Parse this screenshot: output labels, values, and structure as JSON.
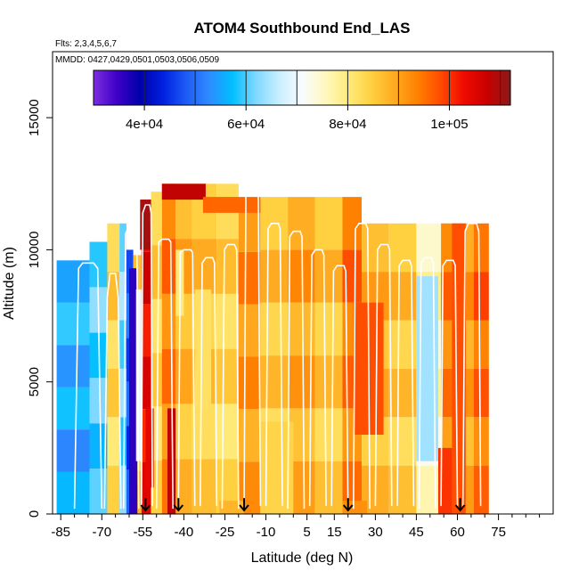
{
  "chart_data": {
    "type": "heatmap",
    "title": "ATOM4 Southbound End_LAS",
    "flights_label": "Flts: 2,3,4,5,6,7",
    "dates_label": "MMDD: 0427,0429,0501,0503,0506,0509",
    "xlabel": "Latitude (deg N)",
    "ylabel": "Altitude (m)",
    "xlim": [
      -88,
      95
    ],
    "ylim": [
      0,
      17500
    ],
    "xticks": [
      -85,
      -70,
      -55,
      -40,
      -25,
      -10,
      5,
      15,
      30,
      45,
      60,
      75
    ],
    "xtick_labels": [
      "-85",
      "-70",
      "-55",
      "-40",
      "-25",
      "-10",
      "5",
      "15",
      "30",
      "45",
      "60",
      "75"
    ],
    "xminor": [
      -90,
      -80,
      -75,
      -65,
      -60,
      -50,
      -45,
      -35,
      -30,
      -20,
      -15,
      -5,
      0,
      10,
      20,
      25,
      35,
      40,
      50,
      55,
      65,
      70,
      80,
      85,
      90
    ],
    "yticks": [
      0,
      5000,
      10000,
      15000
    ],
    "ytick_labels": [
      "0",
      "5000",
      "10000",
      "15000"
    ],
    "colorbar": {
      "min": 30000,
      "max": 112000,
      "ticks": [
        40000,
        60000,
        80000,
        100000
      ],
      "tick_labels": [
        "4e+04",
        "6e+04",
        "8e+04",
        "1e+05"
      ],
      "colors": [
        "#7B2FE0",
        "#3F00C8",
        "#0000AA",
        "#0020E0",
        "#1E5CF5",
        "#2E8CFF",
        "#00BFFF",
        "#7ED8FF",
        "#C8EEFF",
        "#F8FCFF",
        "#FFF8C0",
        "#FFEB7A",
        "#FFD040",
        "#FFAA20",
        "#FF8000",
        "#FF4A00",
        "#F00A00",
        "#C80000",
        "#8B1A1A"
      ]
    },
    "columns": [
      {
        "x0": -86.5,
        "x1": -74.5,
        "top": 9600,
        "v": 56000
      },
      {
        "x0": -74.5,
        "x1": -68.0,
        "top": 10300,
        "v": 60000
      },
      {
        "x0": -68.0,
        "x1": -63.5,
        "top": 11000,
        "v": 84000
      },
      {
        "x0": -63.5,
        "x1": -61.0,
        "top": 11000,
        "v": 62000
      },
      {
        "x0": -61.0,
        "x1": -58.5,
        "top": 10000,
        "v": 48000
      },
      {
        "x0": -58.5,
        "x1": -55.5,
        "top": 9800,
        "v": 88000
      },
      {
        "x0": -55.5,
        "x1": -52.0,
        "top": 11900,
        "v": 104000
      },
      {
        "x0": -52.0,
        "x1": -48.0,
        "top": 12200,
        "v": 84000
      },
      {
        "x0": -48.0,
        "x1": -43.0,
        "top": 12500,
        "v": 94000
      },
      {
        "x0": -43.0,
        "x1": -37.0,
        "top": 12500,
        "v": 88000
      },
      {
        "x0": -37.0,
        "x1": -28.0,
        "top": 12500,
        "v": 86000
      },
      {
        "x0": -28.0,
        "x1": -20.0,
        "top": 12500,
        "v": 84000
      },
      {
        "x0": -20.0,
        "x1": -12.0,
        "top": 11900,
        "v": 92000
      },
      {
        "x0": -12.0,
        "x1": -2.0,
        "top": 12000,
        "v": 86000
      },
      {
        "x0": -2.0,
        "x1": 8.0,
        "top": 12000,
        "v": 90000
      },
      {
        "x0": 8.0,
        "x1": 18.0,
        "top": 12000,
        "v": 86000
      },
      {
        "x0": 18.0,
        "x1": 25.0,
        "top": 12000,
        "v": 95000
      },
      {
        "x0": 25.0,
        "x1": 35.0,
        "top": 11000,
        "v": 88000
      },
      {
        "x0": 35.0,
        "x1": 45.0,
        "top": 11000,
        "v": 86000
      },
      {
        "x0": 45.0,
        "x1": 54.0,
        "top": 11000,
        "v": 76000
      },
      {
        "x0": 54.0,
        "x1": 62.0,
        "top": 11000,
        "v": 94000
      },
      {
        "x0": 62.0,
        "x1": 66.0,
        "top": 11000,
        "v": 90000
      },
      {
        "x0": 66.0,
        "x1": 71.5,
        "top": 11000,
        "v": 96000
      }
    ],
    "patches": [
      {
        "x0": -56.0,
        "x1": -52.0,
        "y0": 10000,
        "y1": 11900,
        "v": 110000
      },
      {
        "x0": -48.0,
        "x1": -32.0,
        "y0": 11900,
        "y1": 12500,
        "v": 108000
      },
      {
        "x0": -33.0,
        "x1": -12.0,
        "y0": 11400,
        "y1": 12000,
        "v": 96000
      },
      {
        "x0": -60.0,
        "x1": -57.0,
        "y0": 0,
        "y1": 9300,
        "v": 36000
      },
      {
        "x0": -57.5,
        "x1": -55.5,
        "y0": 2000,
        "y1": 8500,
        "v": 70000
      },
      {
        "x0": -54.0,
        "x1": -51.0,
        "y0": 1000,
        "y1": 4000,
        "v": 104000
      },
      {
        "x0": -43.0,
        "x1": -40.0,
        "y0": 7500,
        "y1": 10000,
        "v": 80000
      },
      {
        "x0": -46.0,
        "x1": -43.0,
        "y0": 0,
        "y1": 4000,
        "v": 108000
      },
      {
        "x0": -12.0,
        "x1": 0.0,
        "y0": 0,
        "y1": 3500,
        "v": 84000
      },
      {
        "x0": 18.0,
        "x1": 27.0,
        "y0": 0,
        "y1": 500,
        "v": 92000
      },
      {
        "x0": 22.0,
        "x1": 33.0,
        "y0": 3000,
        "y1": 8000,
        "v": 98000
      },
      {
        "x0": 45.0,
        "x1": 53.0,
        "y0": 2000,
        "y1": 9000,
        "v": 64000
      },
      {
        "x0": 53.0,
        "x1": 58.0,
        "y0": 0,
        "y1": 2500,
        "v": 100000
      },
      {
        "x0": 58.0,
        "x1": 63.0,
        "y0": 0,
        "y1": 11000,
        "v": 98000
      },
      {
        "x0": -27.0,
        "x1": -18.0,
        "y0": 0,
        "y1": 500,
        "v": 88000
      },
      {
        "x0": -36.0,
        "x1": -30.0,
        "y0": 4000,
        "y1": 8500,
        "v": 82000
      }
    ],
    "profiles": [
      {
        "x": [
          -80,
          -78.5,
          -77,
          -73,
          -71.5,
          -70
        ],
        "y": [
          200,
          9300,
          9500,
          9500,
          9300,
          200
        ]
      },
      {
        "x": [
          -69,
          -68,
          -67,
          -65,
          -64,
          -63
        ],
        "y": [
          200,
          8200,
          9100,
          9100,
          8200,
          200
        ]
      },
      {
        "x": [
          -62,
          -61.3,
          -60.5,
          -58,
          -57.2,
          -56.5
        ],
        "y": [
          200,
          10600,
          10800,
          10800,
          10600,
          200
        ]
      },
      {
        "x": [
          -55.5,
          -55,
          -54,
          -52.5,
          -52,
          -51.5
        ],
        "y": [
          300,
          11400,
          11700,
          11700,
          11400,
          300
        ]
      },
      {
        "x": [
          -50,
          -49.2,
          -48,
          -45.5,
          -44.8,
          -44
        ],
        "y": [
          200,
          10300,
          10400,
          10400,
          10300,
          200
        ]
      },
      {
        "x": [
          -42,
          -41.3,
          -40,
          -37.5,
          -36.8,
          -36
        ],
        "y": [
          300,
          9900,
          10000,
          10000,
          9900,
          300
        ]
      },
      {
        "x": [
          -34,
          -33.3,
          -32,
          -29.5,
          -28.8,
          -28
        ],
        "y": [
          300,
          9500,
          9700,
          9700,
          9500,
          300
        ]
      },
      {
        "x": [
          -26,
          -25.2,
          -24,
          -21.5,
          -20.7,
          -20
        ],
        "y": [
          200,
          10000,
          10200,
          10200,
          10000,
          200
        ]
      },
      {
        "x": [
          -18,
          -17.3,
          -16,
          -13.5,
          -12.8,
          -12
        ],
        "y": [
          300,
          12300,
          12400,
          12400,
          12300,
          300
        ]
      },
      {
        "x": [
          -10,
          -9.2,
          -8,
          -5.5,
          -4.8,
          -4
        ],
        "y": [
          300,
          10800,
          11000,
          11000,
          10800,
          300
        ]
      },
      {
        "x": [
          -2,
          -1.3,
          0,
          2.5,
          3.2,
          4
        ],
        "y": [
          200,
          10500,
          10700,
          10700,
          10500,
          200
        ]
      },
      {
        "x": [
          6,
          6.8,
          8,
          10.5,
          11.2,
          12
        ],
        "y": [
          300,
          9800,
          10000,
          10000,
          9800,
          300
        ]
      },
      {
        "x": [
          14,
          14.7,
          16,
          18.5,
          19.2,
          20
        ],
        "y": [
          300,
          9200,
          9400,
          9400,
          9200,
          300
        ]
      },
      {
        "x": [
          22,
          22.7,
          24,
          26.5,
          27.2,
          28
        ],
        "y": [
          200,
          10800,
          11000,
          11000,
          10800,
          200
        ]
      },
      {
        "x": [
          30,
          30.8,
          32,
          34.5,
          35.2,
          36
        ],
        "y": [
          300,
          10000,
          10200,
          10200,
          10000,
          300
        ]
      },
      {
        "x": [
          38,
          38.7,
          40,
          42.5,
          43.2,
          44
        ],
        "y": [
          300,
          9400,
          9600,
          9600,
          9400,
          300
        ]
      },
      {
        "x": [
          46,
          46.7,
          48,
          50.5,
          51.2,
          52
        ],
        "y": [
          200,
          9500,
          9700,
          9700,
          9500,
          200
        ]
      },
      {
        "x": [
          54,
          54.7,
          56,
          58.5,
          59.2,
          60
        ],
        "y": [
          300,
          9400,
          9600,
          9600,
          9400,
          300
        ]
      },
      {
        "x": [
          62,
          62.8,
          64,
          67,
          67.8,
          68.5
        ],
        "y": [
          300,
          10700,
          11000,
          11000,
          10700,
          300
        ]
      }
    ],
    "markers": [
      -54,
      -42,
      -18,
      20,
      61
    ]
  }
}
